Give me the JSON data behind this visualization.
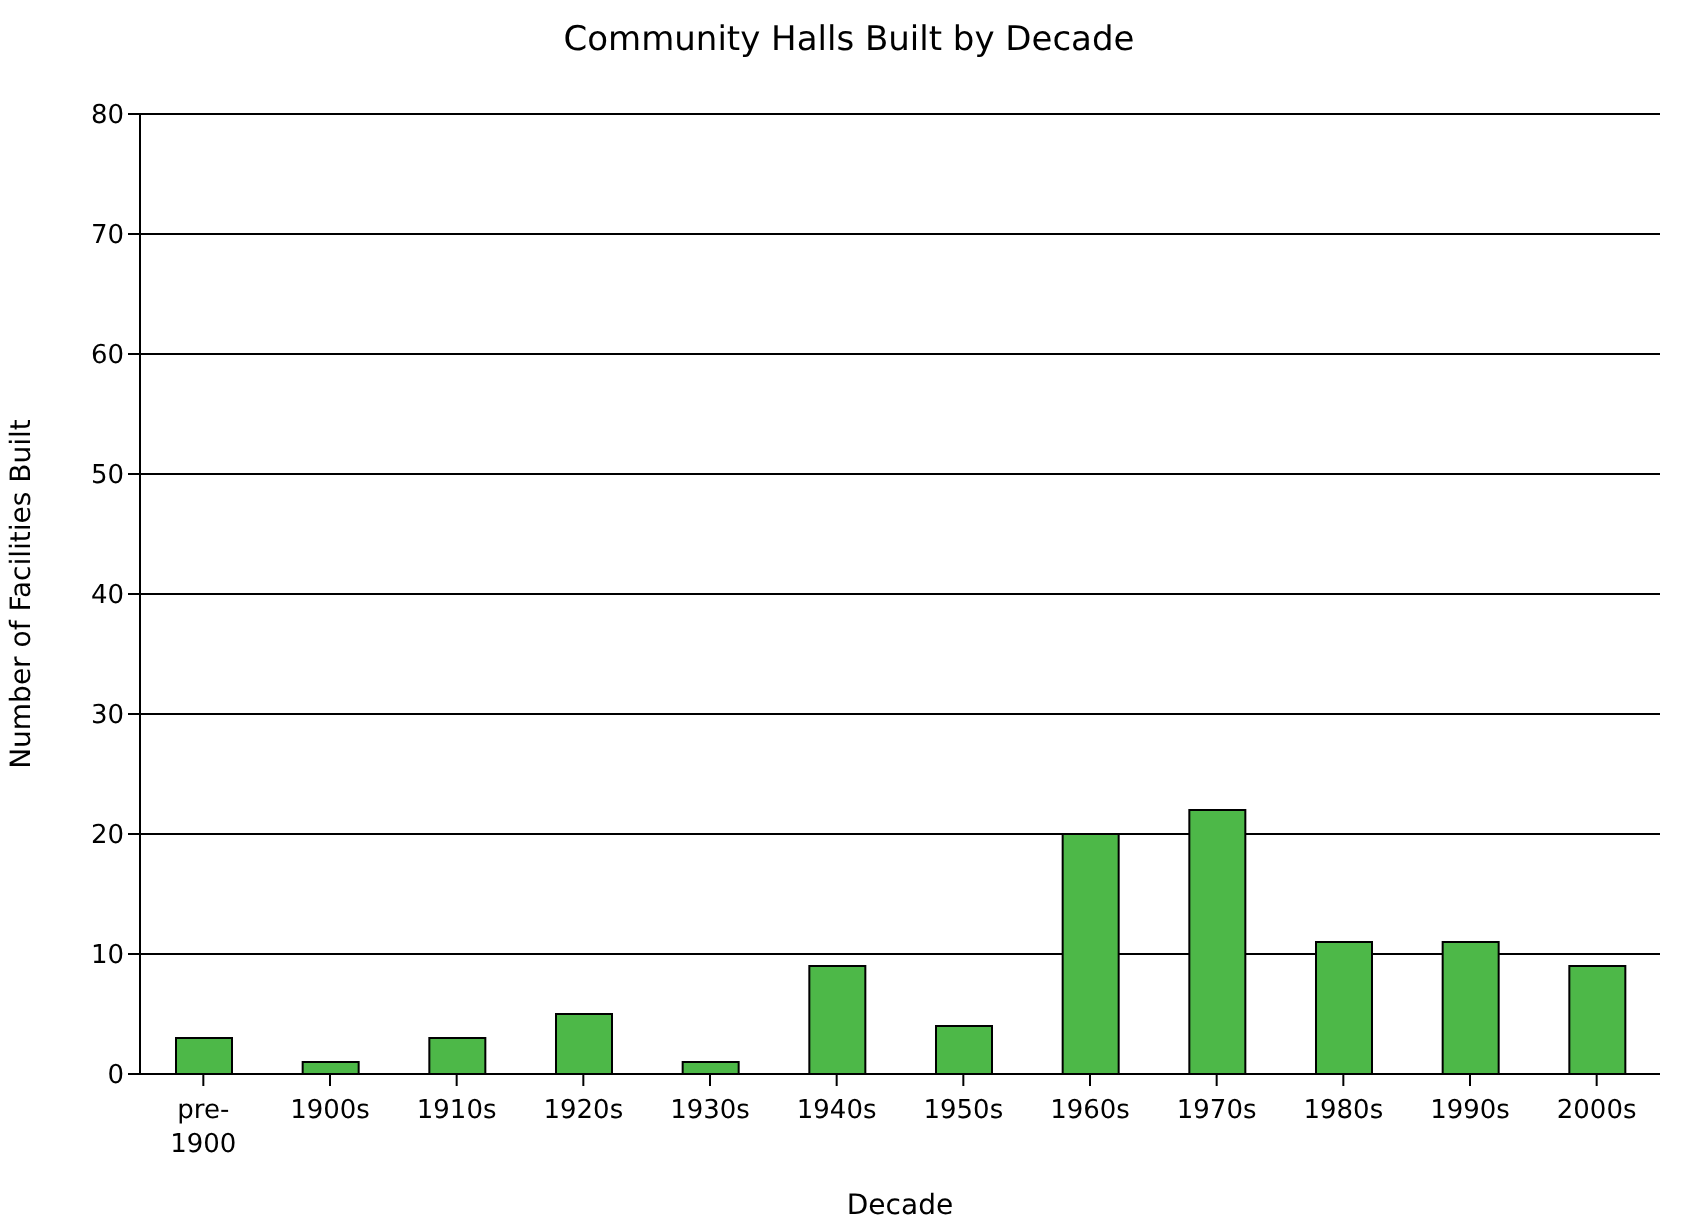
{
  "chart_data": {
    "type": "bar",
    "title": "Community Halls Built by Decade",
    "xlabel": "Decade",
    "ylabel": "Number of Facilities Built",
    "categories": [
      "pre-1900",
      "1900s",
      "1910s",
      "1920s",
      "1930s",
      "1940s",
      "1950s",
      "1960s",
      "1970s",
      "1980s",
      "1990s",
      "2000s"
    ],
    "values": [
      3,
      1,
      3,
      5,
      1,
      9,
      4,
      20,
      22,
      11,
      11,
      9
    ],
    "color": "#4db848",
    "ylim": [
      0,
      80
    ],
    "yticks": [
      0,
      10,
      20,
      30,
      40,
      50,
      60,
      70,
      80
    ],
    "grid": "y"
  }
}
